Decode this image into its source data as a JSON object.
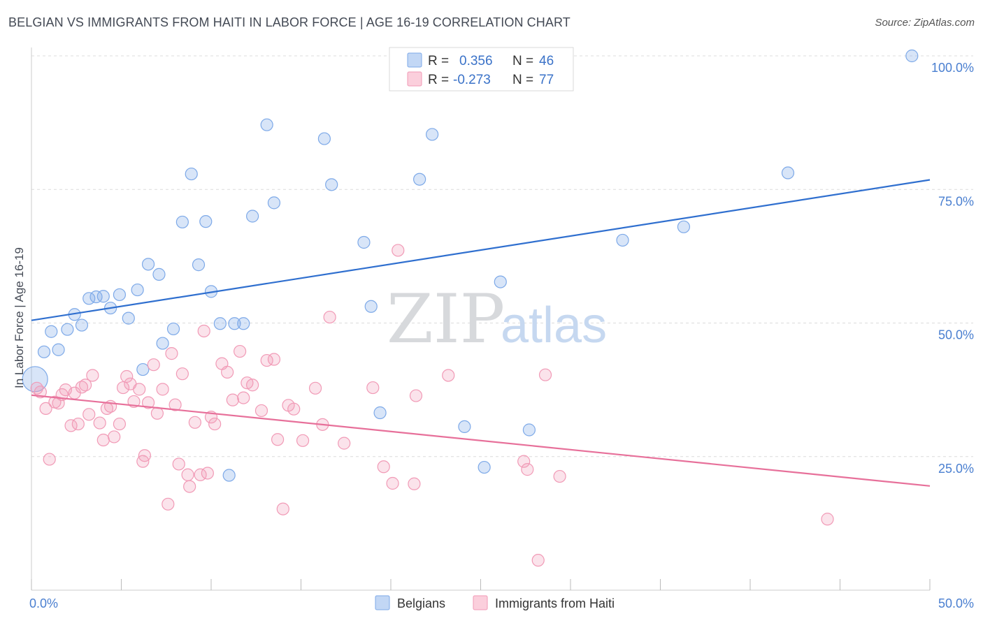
{
  "header": {
    "title": "BELGIAN VS IMMIGRANTS FROM HAITI IN LABOR FORCE | AGE 16-19 CORRELATION CHART",
    "source": "Source: ZipAtlas.com"
  },
  "watermark": {
    "zip": "ZIP",
    "atlas": "atlas"
  },
  "legend_box": {
    "rows": [
      {
        "r_label": "R =",
        "r_value": "0.356",
        "n_label": "N =",
        "n_value": "46",
        "color": "#7da9e8"
      },
      {
        "r_label": "R =",
        "r_value": "-0.273",
        "n_label": "N =",
        "n_value": "77",
        "color": "#f19ab6"
      }
    ]
  },
  "chart_data": {
    "type": "scatter",
    "title": "BELGIAN VS IMMIGRANTS FROM HAITI IN LABOR FORCE | AGE 16-19 CORRELATION CHART",
    "xlabel": "",
    "ylabel": "In Labor Force | Age 16-19",
    "xlim": [
      0,
      50
    ],
    "ylim": [
      0,
      100
    ],
    "x_tick_labels": [
      "0.0%",
      "50.0%"
    ],
    "y_tick_labels": [
      "25.0%",
      "50.0%",
      "75.0%",
      "100.0%"
    ],
    "y_tick_values": [
      25,
      50,
      75,
      100
    ],
    "grid": true,
    "legend_position": "top-center",
    "series": [
      {
        "name": "Belgians",
        "color": "#7da9e8",
        "line_color": "#2f6fcf",
        "r": 0.356,
        "n": 46,
        "trend": {
          "x": [
            0,
            50
          ],
          "y": [
            50.5,
            76.8
          ]
        },
        "points": [
          [
            0.2,
            39.5
          ],
          [
            0.7,
            44.6
          ],
          [
            1.1,
            48.4
          ],
          [
            1.5,
            45.0
          ],
          [
            2.0,
            48.8
          ],
          [
            2.4,
            51.6
          ],
          [
            2.8,
            49.6
          ],
          [
            3.2,
            54.6
          ],
          [
            3.6,
            54.9
          ],
          [
            4.0,
            55.0
          ],
          [
            4.4,
            52.8
          ],
          [
            4.9,
            55.3
          ],
          [
            5.4,
            50.9
          ],
          [
            5.9,
            56.2
          ],
          [
            6.2,
            41.3
          ],
          [
            6.5,
            61.0
          ],
          [
            7.1,
            59.1
          ],
          [
            7.3,
            46.2
          ],
          [
            7.9,
            48.9
          ],
          [
            8.4,
            68.9
          ],
          [
            8.9,
            77.9
          ],
          [
            9.3,
            60.9
          ],
          [
            9.7,
            69.0
          ],
          [
            10.0,
            55.9
          ],
          [
            10.5,
            49.9
          ],
          [
            11.0,
            21.5
          ],
          [
            11.3,
            49.9
          ],
          [
            11.8,
            49.9
          ],
          [
            12.3,
            70.0
          ],
          [
            13.1,
            87.1
          ],
          [
            13.5,
            72.5
          ],
          [
            16.3,
            84.5
          ],
          [
            16.7,
            75.9
          ],
          [
            18.5,
            65.1
          ],
          [
            18.9,
            53.1
          ],
          [
            19.4,
            33.2
          ],
          [
            21.6,
            76.9
          ],
          [
            22.3,
            85.3
          ],
          [
            24.1,
            30.6
          ],
          [
            25.2,
            23.0
          ],
          [
            26.1,
            57.7
          ],
          [
            27.7,
            30.0
          ],
          [
            32.9,
            65.5
          ],
          [
            36.3,
            68.0
          ],
          [
            42.1,
            78.1
          ],
          [
            49.0,
            100.0
          ]
        ]
      },
      {
        "name": "Immigrants from Haiti",
        "color": "#f19ab6",
        "line_color": "#e7709a",
        "r": -0.273,
        "n": 77,
        "trend": {
          "x": [
            0,
            50
          ],
          "y": [
            36.5,
            19.5
          ]
        },
        "points": [
          [
            0.3,
            37.8
          ],
          [
            0.5,
            37.1
          ],
          [
            0.8,
            34.0
          ],
          [
            1.0,
            24.5
          ],
          [
            1.3,
            35.2
          ],
          [
            1.5,
            35.0
          ],
          [
            1.7,
            36.6
          ],
          [
            1.9,
            37.5
          ],
          [
            2.2,
            30.8
          ],
          [
            2.4,
            36.9
          ],
          [
            2.6,
            31.1
          ],
          [
            2.8,
            38.0
          ],
          [
            3.0,
            38.4
          ],
          [
            3.2,
            32.9
          ],
          [
            3.4,
            40.2
          ],
          [
            3.8,
            31.3
          ],
          [
            4.0,
            28.1
          ],
          [
            4.2,
            34.0
          ],
          [
            4.4,
            34.4
          ],
          [
            4.6,
            28.7
          ],
          [
            4.9,
            31.1
          ],
          [
            5.1,
            37.9
          ],
          [
            5.3,
            40.0
          ],
          [
            5.5,
            38.6
          ],
          [
            5.7,
            35.3
          ],
          [
            6.0,
            37.6
          ],
          [
            6.2,
            24.1
          ],
          [
            6.3,
            25.2
          ],
          [
            6.5,
            35.1
          ],
          [
            6.8,
            42.2
          ],
          [
            7.0,
            33.1
          ],
          [
            7.3,
            37.6
          ],
          [
            7.6,
            16.1
          ],
          [
            7.8,
            44.3
          ],
          [
            8.0,
            34.7
          ],
          [
            8.2,
            23.6
          ],
          [
            8.4,
            40.5
          ],
          [
            8.7,
            21.6
          ],
          [
            8.8,
            19.4
          ],
          [
            9.1,
            31.4
          ],
          [
            9.4,
            21.6
          ],
          [
            9.6,
            48.5
          ],
          [
            9.8,
            21.9
          ],
          [
            10.0,
            32.4
          ],
          [
            10.2,
            31.1
          ],
          [
            10.6,
            42.4
          ],
          [
            10.9,
            40.8
          ],
          [
            11.2,
            35.6
          ],
          [
            11.6,
            44.7
          ],
          [
            11.8,
            36.0
          ],
          [
            12.0,
            38.8
          ],
          [
            12.3,
            38.4
          ],
          [
            12.8,
            33.6
          ],
          [
            13.1,
            43.0
          ],
          [
            13.5,
            43.2
          ],
          [
            13.7,
            28.2
          ],
          [
            14.0,
            15.2
          ],
          [
            14.3,
            34.6
          ],
          [
            14.6,
            33.9
          ],
          [
            15.1,
            28.0
          ],
          [
            15.8,
            37.8
          ],
          [
            16.2,
            31.0
          ],
          [
            16.6,
            51.1
          ],
          [
            17.4,
            27.5
          ],
          [
            19.0,
            37.9
          ],
          [
            19.6,
            23.1
          ],
          [
            20.1,
            20.0
          ],
          [
            20.4,
            63.6
          ],
          [
            21.3,
            19.9
          ],
          [
            23.2,
            40.2
          ],
          [
            27.4,
            24.1
          ],
          [
            27.6,
            22.6
          ],
          [
            28.2,
            5.6
          ],
          [
            28.6,
            40.3
          ],
          [
            29.4,
            21.3
          ],
          [
            44.3,
            13.3
          ],
          [
            21.4,
            36.4
          ]
        ]
      }
    ]
  },
  "bottom_legend": {
    "items": [
      {
        "label": "Belgians",
        "color": "#7da9e8"
      },
      {
        "label": "Immigrants from Haiti",
        "color": "#f19ab6"
      }
    ]
  }
}
